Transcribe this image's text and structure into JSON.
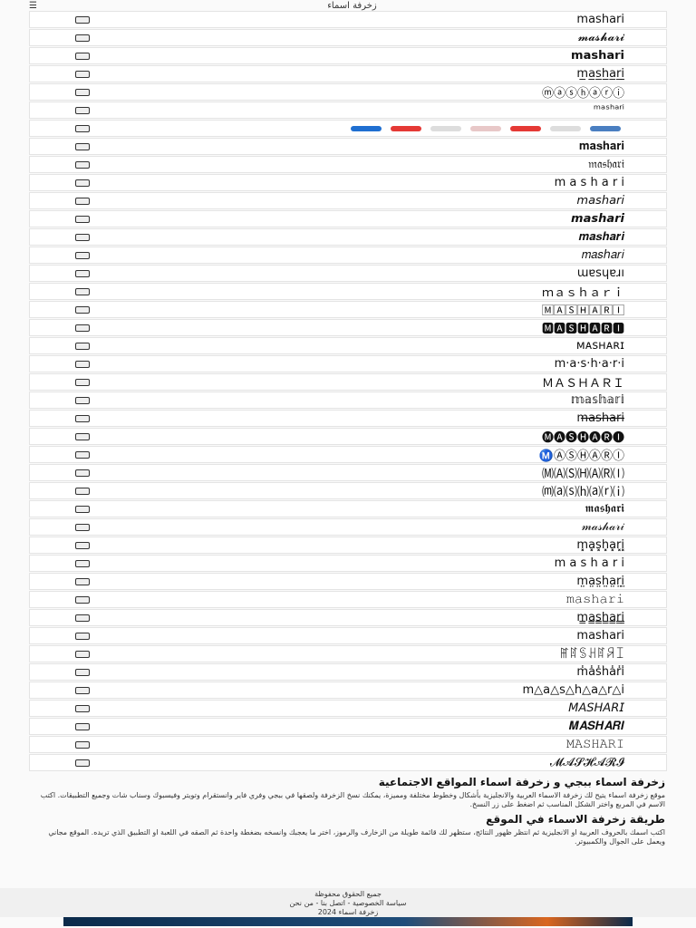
{
  "header": {
    "title": "زخرفة اسماء"
  },
  "rows": [
    "mashari",
    "𝓶𝓪𝓼𝓱𝓪𝓻𝓲",
    "𝗺𝗮𝘀𝗵𝗮𝗿𝗶",
    "m̲a̲s̲h̲a̲r̲i̲",
    "ⓜⓐⓢⓗⓐⓡⓘ",
    "ᵐᵃˢʰᵃʳⁱ",
    "",
    "𝐦𝐚𝐬𝐡𝐚𝐫𝐢",
    "𝔪𝔞𝔰𝔥𝔞𝔯𝔦",
    "m a s h a r i",
    "𝘮𝘢𝘴𝘩𝘢𝘳𝘪",
    "𝙢𝙖𝙨𝙝𝙖𝙧𝙞",
    "𝒎𝒂𝒔𝒉𝒂𝒓𝒊",
    "𝑚𝑎𝑠ℎ𝑎𝑟𝑖",
    "ɯɐsɥɐɹı",
    "ｍａｓｈａｒｉ",
    "🄼🄰🅂🄷🄰🅁🄸",
    "🅼🅰🆂🅷🅰🆁🅸",
    "ᴍᴀsʜᴀʀɪ",
    "m·a·s·h·a·r·i",
    "ＭＡＳＨＡＲＩ",
    "𝕞𝕒𝕤𝕙𝕒𝕣𝕚",
    "m̶a̶s̶h̶a̶r̶i̶",
    "🅜🅐🅢🅗🅐🅡🅘",
    "Ⓜ️Ⓐ️Ⓢ️Ⓗ️Ⓐ️Ⓡ️Ⓘ️",
    "🄜🄐🄢🄗🄐🄡🄘",
    "⒨⒜⒮⒣⒜⒭⒤",
    "𝖒𝖆𝖘𝖍𝖆𝖗𝖎",
    "𝓂𝒶𝓈𝒽𝒶𝓇𝒾",
    "m͓a͓s͓h͓a͓r͓i͓",
    "m  a  s  h  a  r  i",
    "m̤a̤s̤h̤a̤r̤i̤",
    "𝚖𝚊𝚜𝚑𝚊𝚛𝚒",
    "m̳a̳s̳h̳a̳r̳i̳",
    "𝗆𝖺𝗌𝗁𝖺𝗋𝗂",
    "ꂵꍏꌗꃅꍏꋪꀤ",
    "m̾a̾s̾h̾a̾r̾i̾",
    "m△a△s△h△a△r△i",
    "𝘔𝘈𝘚𝘏𝘈𝘙𝘐",
    "𝑴𝑨𝑺𝑯𝑨𝑹𝑰",
    "𝙼𝙰𝚂𝙷𝙰𝚁𝙸",
    "𝓜𝓐𝓢𝓗𝓐𝓡𝓘"
  ],
  "article": {
    "heading1": "زخرفة اسماء ببجي و زخرفة اسماء المواقع الاجتماعية",
    "paragraph1": "موقع زخرفة اسماء يتيح لك زخرفة الاسماء العربية والانجليزية بأشكال وخطوط مختلفة ومميزة، يمكنك نسخ الزخرفة ولصقها في ببجي وفري فاير وانستقرام وتويتر وفيسبوك وسناب شات وجميع التطبيقات. اكتب الاسم في المربع واختر الشكل المناسب ثم اضغط على زر النسخ.",
    "heading2": "طريقة زخرفة الاسماء في الموقع",
    "paragraph2": "اكتب اسمك بالحروف العربية او الانجليزية ثم انتظر ظهور النتائج، ستظهر لك قائمة طويلة من الزخارف والرموز، اختر ما يعجبك وانسخه بضغطة واحدة ثم الصقه في اللعبة او التطبيق الذي تريده. الموقع مجاني ويعمل على الجوال والكمبيوتر."
  },
  "footer": {
    "line1": "جميع الحقوق محفوظة",
    "line2": "سياسة الخصوصية - اتصل بنا - من نحن",
    "line3": "زخرفة اسماء 2024"
  }
}
